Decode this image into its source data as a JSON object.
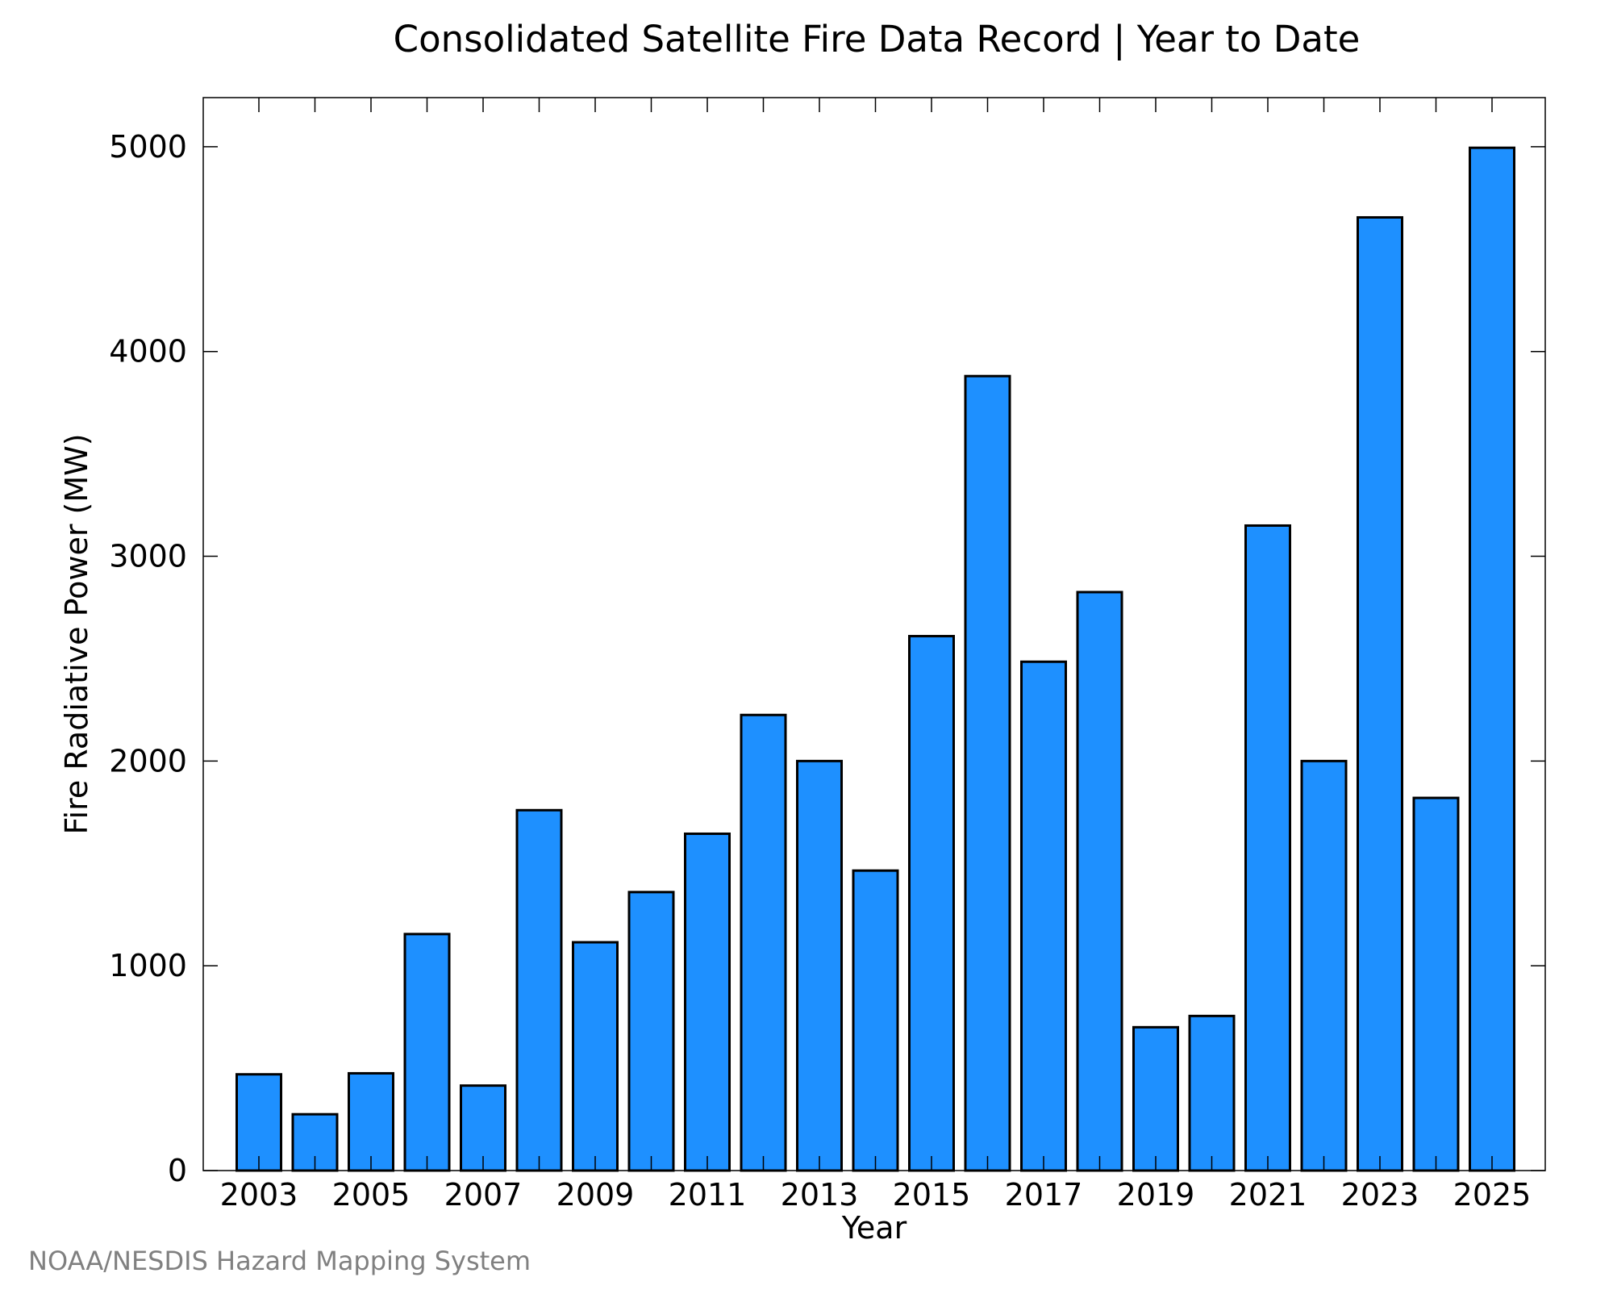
{
  "chart_data": {
    "type": "bar",
    "title": "Consolidated Satellite Fire Data Record | Year to Date",
    "xlabel": "Year",
    "ylabel": "Fire Radiative Power (MW)",
    "categories": [
      "2003",
      "2004",
      "2005",
      "2006",
      "2007",
      "2008",
      "2009",
      "2010",
      "2011",
      "2012",
      "2013",
      "2014",
      "2015",
      "2016",
      "2017",
      "2018",
      "2019",
      "2020",
      "2021",
      "2022",
      "2023",
      "2024",
      "2025"
    ],
    "x_tick_labels": [
      "2003",
      "2005",
      "2007",
      "2009",
      "2011",
      "2013",
      "2015",
      "2017",
      "2019",
      "2021",
      "2023",
      "2025"
    ],
    "y_tick_labels": [
      "0",
      "1000",
      "2000",
      "3000",
      "4000",
      "5000"
    ],
    "y_ticks": [
      0,
      1000,
      2000,
      3000,
      4000,
      5000
    ],
    "values": [
      470,
      275,
      475,
      1155,
      415,
      1760,
      1115,
      1360,
      1645,
      2225,
      2000,
      1465,
      2610,
      3880,
      2485,
      2825,
      700,
      755,
      3150,
      2000,
      4655,
      1820,
      4995
    ],
    "ylim": [
      0,
      5240
    ],
    "grid": false,
    "bar_color": "#1e90ff"
  },
  "credit": "NOAA/NESDIS Hazard Mapping System"
}
